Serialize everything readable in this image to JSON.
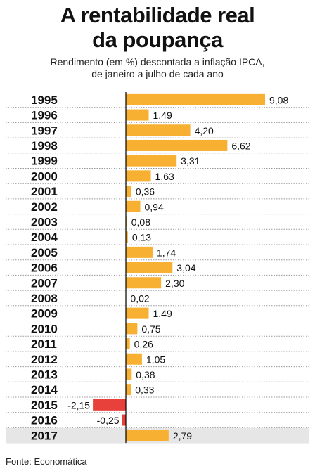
{
  "title_line1": "A rentabilidade real",
  "title_line2": "da poupança",
  "subtitle_line1": "Rendimento (em %) descontada a inflação IPCA,",
  "subtitle_line2": "de janeiro a julho de cada ano",
  "source": "Fonte: Economática",
  "colors": {
    "positive": "#f7b032",
    "negative": "#e8413c",
    "highlight_row": "#e6e6e6",
    "axis": "#000000"
  },
  "chart_data": {
    "type": "bar",
    "orientation": "horizontal",
    "title": "A rentabilidade real da poupança",
    "subtitle": "Rendimento (em %) descontada a inflação IPCA, de janeiro a julho de cada ano",
    "categories": [
      "1995",
      "1996",
      "1997",
      "1998",
      "1999",
      "2000",
      "2001",
      "2002",
      "2003",
      "2004",
      "2005",
      "2006",
      "2007",
      "2008",
      "2009",
      "2010",
      "2011",
      "2012",
      "2013",
      "2014",
      "2015",
      "2016",
      "2017"
    ],
    "values": [
      9.08,
      1.49,
      4.2,
      6.62,
      3.31,
      1.63,
      0.36,
      0.94,
      0.08,
      0.13,
      1.74,
      3.04,
      2.3,
      0.02,
      1.49,
      0.75,
      0.26,
      1.05,
      0.38,
      0.33,
      -2.15,
      -0.25,
      2.79
    ],
    "labels": [
      "9,08",
      "1,49",
      "4,20",
      "6,62",
      "3,31",
      "1,63",
      "0,36",
      "0,94",
      "0,08",
      "0,13",
      "1,74",
      "3,04",
      "2,30",
      "0,02",
      "1,49",
      "0,75",
      "0,26",
      "1,05",
      "0,38",
      "0,33",
      "-2,15",
      "-0,25",
      "2,79"
    ],
    "highlighted_category": "2017",
    "xlim": [
      -2.15,
      9.08
    ],
    "grid": false,
    "legend": "none"
  }
}
